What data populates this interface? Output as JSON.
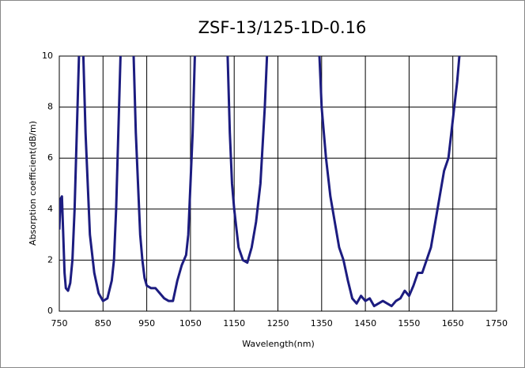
{
  "chart_data": {
    "type": "line",
    "title": "ZSF-13/125-1D-0.16",
    "x_label": "Wavelength(nm)",
    "y_label": "Absorption coefficient(dB/m)",
    "x": [
      750,
      753,
      756,
      758,
      762,
      765,
      770,
      775,
      780,
      785,
      790,
      795,
      800,
      805,
      810,
      815,
      820,
      830,
      840,
      850,
      860,
      870,
      875,
      880,
      885,
      890,
      905,
      920,
      925,
      930,
      935,
      940,
      945,
      950,
      960,
      970,
      980,
      990,
      1000,
      1010,
      1020,
      1030,
      1040,
      1045,
      1050,
      1055,
      1060,
      1100,
      1135,
      1140,
      1145,
      1150,
      1160,
      1170,
      1180,
      1190,
      1200,
      1210,
      1220,
      1225,
      1300,
      1345,
      1350,
      1360,
      1370,
      1380,
      1390,
      1400,
      1410,
      1420,
      1430,
      1440,
      1450,
      1460,
      1470,
      1480,
      1490,
      1500,
      1510,
      1520,
      1530,
      1540,
      1550,
      1560,
      1570,
      1580,
      1590,
      1600,
      1610,
      1620,
      1630,
      1640,
      1650,
      1660,
      1665
    ],
    "series": [
      {
        "name": "ZSF-13/125-1D-0.16",
        "color": "#1c1c80",
        "values": [
          3.2,
          4.4,
          4.5,
          3.5,
          1.5,
          0.9,
          0.8,
          1.1,
          2,
          4,
          7,
          10,
          null,
          10,
          7,
          5,
          3,
          1.5,
          0.7,
          0.4,
          0.5,
          1.2,
          2,
          4,
          7,
          10,
          null,
          10,
          7,
          5,
          3,
          2,
          1.3,
          1.0,
          0.9,
          0.9,
          0.7,
          0.5,
          0.4,
          0.4,
          1.2,
          1.8,
          2.2,
          3,
          5,
          7,
          10,
          null,
          10,
          7,
          5,
          4,
          2.5,
          2.0,
          1.9,
          2.5,
          3.5,
          5,
          8,
          10,
          null,
          10,
          8,
          6,
          4.5,
          3.5,
          2.5,
          2.0,
          1.2,
          0.5,
          0.3,
          0.6,
          0.4,
          0.5,
          0.2,
          0.3,
          0.4,
          0.3,
          0.2,
          0.4,
          0.5,
          0.8,
          0.6,
          1.0,
          1.5,
          1.5,
          2.0,
          2.5,
          3.5,
          4.5,
          5.5,
          6.0,
          7.5,
          9,
          10
        ]
      }
    ],
    "xlim": [
      750,
      1750
    ],
    "xticks": [
      750,
      850,
      950,
      1050,
      1150,
      1250,
      1350,
      1450,
      1550,
      1650,
      1750
    ],
    "ylim": [
      0,
      10
    ],
    "yticks": [
      0,
      2,
      4,
      6,
      8,
      10
    ],
    "grid": true
  }
}
